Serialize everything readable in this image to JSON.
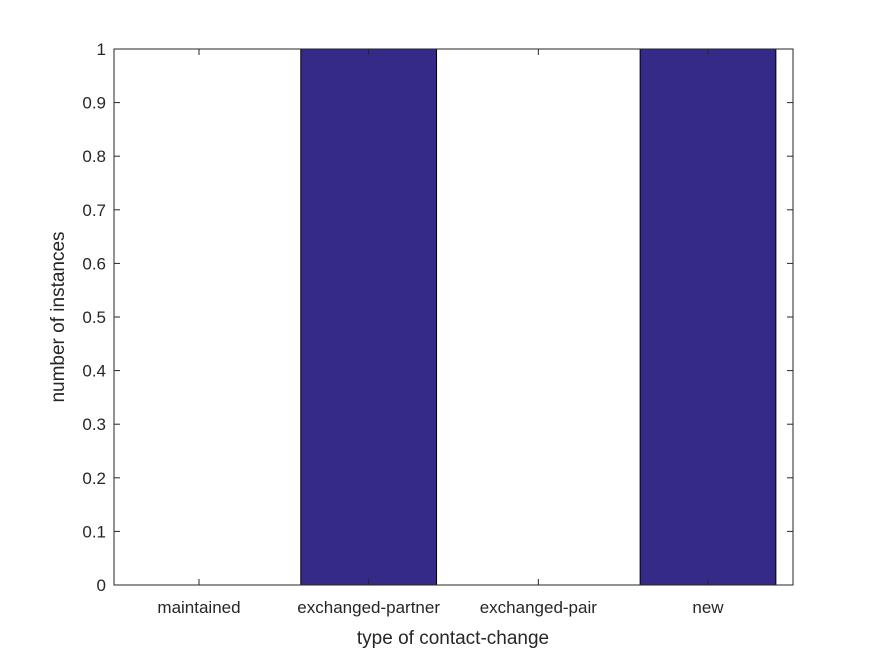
{
  "chart_data": {
    "type": "bar",
    "categories": [
      "maintained",
      "exchanged-partner",
      "exchanged-pair",
      "new"
    ],
    "values": [
      0,
      1,
      0,
      1
    ],
    "title": "",
    "xlabel": "type of contact-change",
    "ylabel": "number of instances",
    "ylim": [
      0,
      1
    ],
    "yticks": [
      "0",
      "0.1",
      "0.2",
      "0.3",
      "0.4",
      "0.5",
      "0.6",
      "0.7",
      "0.8",
      "0.9",
      "1"
    ],
    "grid": false,
    "bar_color": "#352a87"
  }
}
